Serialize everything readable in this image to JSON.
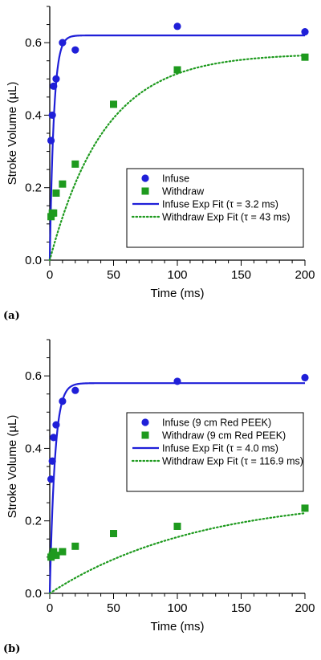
{
  "chart_data": [
    {
      "type": "scatter",
      "panel_label": "(a)",
      "xlabel": "Time (ms)",
      "ylabel": "Stroke Volume (µL)",
      "xlim": [
        0,
        200
      ],
      "ylim": [
        0,
        0.7
      ],
      "x_ticks": [
        "0",
        "50",
        "100",
        "150",
        "200"
      ],
      "y_ticks": [
        "0.0",
        "0.2",
        "0.4",
        "0.6"
      ],
      "legend_position": "bottom-right",
      "series": [
        {
          "name": "Infuse",
          "kind": "points",
          "marker": "circle",
          "color": "#1f1fd8",
          "x": [
            1,
            2,
            3,
            5,
            10,
            20,
            100,
            200
          ],
          "y": [
            0.33,
            0.4,
            0.48,
            0.5,
            0.6,
            0.58,
            0.645,
            0.63
          ]
        },
        {
          "name": "Withdraw",
          "kind": "points",
          "marker": "square",
          "color": "#1e9a1e",
          "x": [
            1,
            2,
            3,
            5,
            10,
            20,
            50,
            100,
            200
          ],
          "y": [
            0.12,
            0.13,
            0.13,
            0.185,
            0.21,
            0.265,
            0.43,
            0.525,
            0.56
          ]
        },
        {
          "name": "Infuse Exp Fit (τ = 3.2 ms)",
          "kind": "fit",
          "line": "solid",
          "color": "#1f1fd8",
          "fit": {
            "amplitude": 0.62,
            "tau_ms": 3.2
          }
        },
        {
          "name": "Withdraw Exp Fit (τ = 43 ms)",
          "kind": "fit",
          "line": "dotted",
          "color": "#1e9a1e",
          "fit": {
            "amplitude": 0.57,
            "tau_ms": 43
          }
        }
      ]
    },
    {
      "type": "scatter",
      "panel_label": "(b)",
      "xlabel": "Time (ms)",
      "ylabel": "Stroke Volume (µL)",
      "xlim": [
        0,
        200
      ],
      "ylim": [
        0,
        0.7
      ],
      "x_ticks": [
        "0",
        "50",
        "100",
        "150",
        "200"
      ],
      "y_ticks": [
        "0.0",
        "0.2",
        "0.4",
        "0.6"
      ],
      "legend_position": "right",
      "series": [
        {
          "name": "Infuse (9 cm Red PEEK)",
          "kind": "points",
          "marker": "circle",
          "color": "#1f1fd8",
          "x": [
            1,
            2,
            3,
            5,
            10,
            20,
            100,
            200
          ],
          "y": [
            0.315,
            0.365,
            0.43,
            0.465,
            0.53,
            0.56,
            0.585,
            0.595
          ]
        },
        {
          "name": "Withdraw (9 cm Red PEEK)",
          "kind": "points",
          "marker": "square",
          "color": "#1e9a1e",
          "x": [
            1,
            2,
            3,
            5,
            10,
            20,
            50,
            100,
            200
          ],
          "y": [
            0.1,
            0.105,
            0.115,
            0.105,
            0.115,
            0.13,
            0.165,
            0.185,
            0.235
          ]
        },
        {
          "name": "Infuse Exp Fit (τ = 4.0 ms)",
          "kind": "fit",
          "line": "solid",
          "color": "#1f1fd8",
          "fit": {
            "amplitude": 0.58,
            "tau_ms": 4.0
          }
        },
        {
          "name": "Withdraw Exp Fit (τ = 116.9 ms)",
          "kind": "fit",
          "line": "dotted",
          "color": "#1e9a1e",
          "fit": {
            "amplitude": 0.27,
            "tau_ms": 116.9
          }
        }
      ]
    }
  ]
}
